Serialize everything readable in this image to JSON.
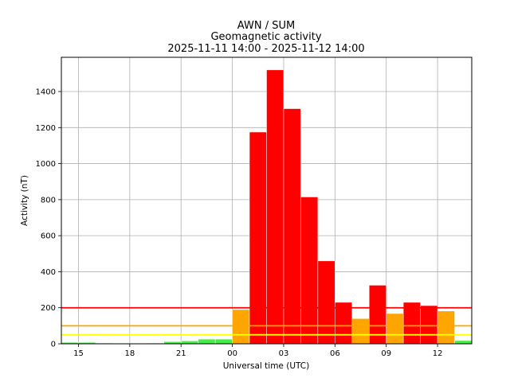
{
  "chart_data": {
    "type": "bar",
    "title": [
      "AWN / SUM",
      "Geomagnetic activity",
      "2025-11-11 14:00 - 2025-11-12 14:00"
    ],
    "xlabel": "Universal time (UTC)",
    "ylabel": "Activity (nT)",
    "ylim": [
      0,
      1590
    ],
    "xlim": [
      14,
      38
    ],
    "grid": true,
    "x_ticks": [
      {
        "value": 15,
        "label": "15"
      },
      {
        "value": 18,
        "label": "18"
      },
      {
        "value": 21,
        "label": "21"
      },
      {
        "value": 24,
        "label": "00"
      },
      {
        "value": 27,
        "label": "03"
      },
      {
        "value": 30,
        "label": "06"
      },
      {
        "value": 33,
        "label": "09"
      },
      {
        "value": 36,
        "label": "12"
      }
    ],
    "y_ticks": [
      0,
      200,
      400,
      600,
      800,
      1000,
      1200,
      1400
    ],
    "threshold_lines": [
      {
        "value": 200,
        "color": "#ff0000"
      },
      {
        "value": 100,
        "color": "#ffa500"
      },
      {
        "value": 50,
        "color": "#ffff00"
      }
    ],
    "bars": [
      {
        "start": 14,
        "value": 8,
        "color": "#44ee44"
      },
      {
        "start": 15,
        "value": 8,
        "color": "#44ee44"
      },
      {
        "start": 16,
        "value": 4,
        "color": "#44ee44"
      },
      {
        "start": 17,
        "value": 3,
        "color": "#44ee44"
      },
      {
        "start": 18,
        "value": 3,
        "color": "#44ee44"
      },
      {
        "start": 19,
        "value": 4,
        "color": "#44ee44"
      },
      {
        "start": 20,
        "value": 12,
        "color": "#44ee44"
      },
      {
        "start": 21,
        "value": 16,
        "color": "#44ee44"
      },
      {
        "start": 22,
        "value": 26,
        "color": "#44ee44"
      },
      {
        "start": 23,
        "value": 26,
        "color": "#44ee44"
      },
      {
        "start": 24,
        "value": 190,
        "color": "#ffa500"
      },
      {
        "start": 25,
        "value": 1175,
        "color": "#ff0000"
      },
      {
        "start": 26,
        "value": 1520,
        "color": "#ff0000"
      },
      {
        "start": 27,
        "value": 1305,
        "color": "#ff0000"
      },
      {
        "start": 28,
        "value": 815,
        "color": "#ff0000"
      },
      {
        "start": 29,
        "value": 460,
        "color": "#ff0000"
      },
      {
        "start": 30,
        "value": 230,
        "color": "#ff0000"
      },
      {
        "start": 31,
        "value": 140,
        "color": "#ffa500"
      },
      {
        "start": 32,
        "value": 325,
        "color": "#ff0000"
      },
      {
        "start": 33,
        "value": 168,
        "color": "#ffa500"
      },
      {
        "start": 34,
        "value": 230,
        "color": "#ff0000"
      },
      {
        "start": 35,
        "value": 212,
        "color": "#ff0000"
      },
      {
        "start": 36,
        "value": 182,
        "color": "#ffa500"
      },
      {
        "start": 37,
        "value": 18,
        "color": "#44ee44"
      }
    ]
  }
}
